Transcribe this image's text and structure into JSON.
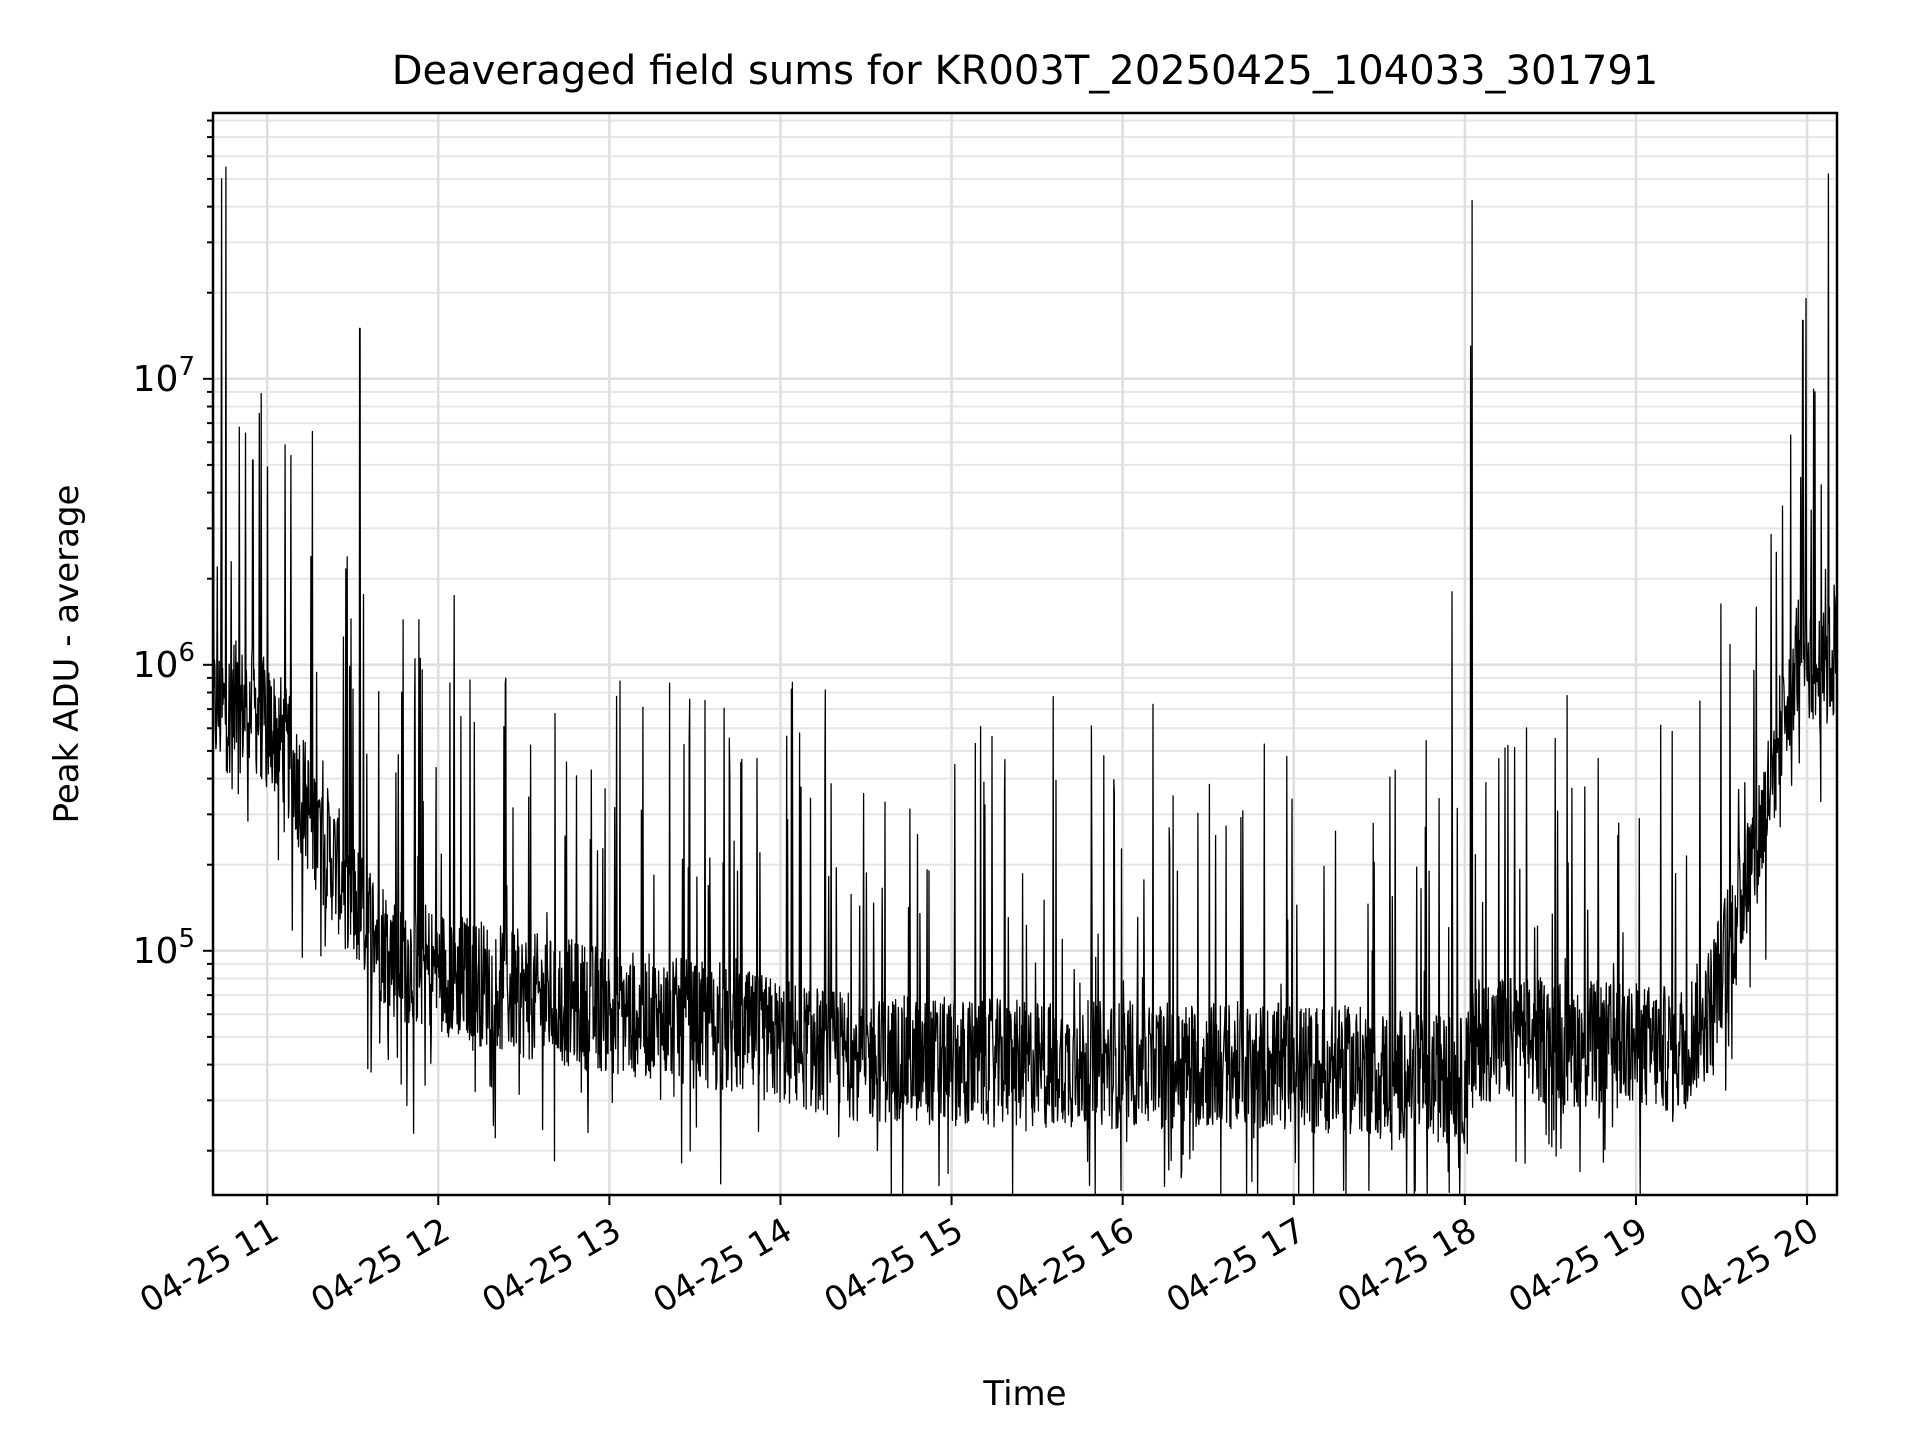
{
  "chart_data": {
    "type": "line",
    "title": "Deaveraged field sums for KR003T_20250425_104033_301791",
    "xlabel": "Time",
    "ylabel": "Peak ADU - average",
    "x_range": [
      "2025-04-25T10:41:00",
      "2025-04-25T20:10:30"
    ],
    "y_scale": "log",
    "ylim": [
      14000,
      85000000
    ],
    "x_ticks": [
      {
        "t": "2025-04-25T11:00:00",
        "label": "04-25 11"
      },
      {
        "t": "2025-04-25T12:00:00",
        "label": "04-25 12"
      },
      {
        "t": "2025-04-25T13:00:00",
        "label": "04-25 13"
      },
      {
        "t": "2025-04-25T14:00:00",
        "label": "04-25 14"
      },
      {
        "t": "2025-04-25T15:00:00",
        "label": "04-25 15"
      },
      {
        "t": "2025-04-25T16:00:00",
        "label": "04-25 16"
      },
      {
        "t": "2025-04-25T17:00:00",
        "label": "04-25 17"
      },
      {
        "t": "2025-04-25T18:00:00",
        "label": "04-25 18"
      },
      {
        "t": "2025-04-25T19:00:00",
        "label": "04-25 19"
      },
      {
        "t": "2025-04-25T20:00:00",
        "label": "04-25 20"
      }
    ],
    "y_ticks": [
      {
        "value": 100000,
        "base": "10",
        "exp": "5"
      },
      {
        "value": 1000000,
        "base": "10",
        "exp": "6"
      },
      {
        "value": 10000000,
        "base": "10",
        "exp": "7"
      }
    ],
    "grid": true,
    "series_color": "#000000",
    "baseline_profile": [
      [
        "2025-04-25T10:41:00",
        700000
      ],
      [
        "2025-04-25T10:55:00",
        700000
      ],
      [
        "2025-04-25T11:05:00",
        550000
      ],
      [
        "2025-04-25T11:15:00",
        300000
      ],
      [
        "2025-04-25T11:30:00",
        150000
      ],
      [
        "2025-04-25T11:45:00",
        95000
      ],
      [
        "2025-04-25T12:30:00",
        70000
      ],
      [
        "2025-04-25T13:30:00",
        55000
      ],
      [
        "2025-04-25T14:30:00",
        42000
      ],
      [
        "2025-04-25T15:30:00",
        40000
      ],
      [
        "2025-04-25T16:30:00",
        40000
      ],
      [
        "2025-04-25T17:30:00",
        38000
      ],
      [
        "2025-04-25T18:00:00",
        35000
      ],
      [
        "2025-04-25T18:05:00",
        50000
      ],
      [
        "2025-04-25T19:15:00",
        45000
      ],
      [
        "2025-04-25T19:25:00",
        60000
      ],
      [
        "2025-04-25T19:35:00",
        130000
      ],
      [
        "2025-04-25T19:45:00",
        300000
      ],
      [
        "2025-04-25T19:53:00",
        800000
      ],
      [
        "2025-04-25T19:58:00",
        1200000
      ],
      [
        "2025-04-25T20:05:00",
        900000
      ],
      [
        "2025-04-25T20:10:30",
        1100000
      ]
    ],
    "peaks": [
      {
        "t": "2025-04-25T10:42:30",
        "value": 2200000
      },
      {
        "t": "2025-04-25T10:44:00",
        "value": 50000000
      },
      {
        "t": "2025-04-25T10:45:30",
        "value": 55000000
      },
      {
        "t": "2025-04-25T10:55:00",
        "value": 5200000
      },
      {
        "t": "2025-04-25T11:32:30",
        "value": 15000000
      },
      {
        "t": "2025-04-25T17:55:30",
        "value": 1800000
      },
      {
        "t": "2025-04-25T18:02:30",
        "value": 42000000
      },
      {
        "t": "2025-04-25T18:02:00",
        "value": 13000000
      },
      {
        "t": "2025-04-25T19:58:30",
        "value": 16000000
      },
      {
        "t": "2025-04-25T20:07:30",
        "value": 52000000
      },
      {
        "t": "2025-04-25T20:09:30",
        "value": 1900000
      }
    ]
  }
}
